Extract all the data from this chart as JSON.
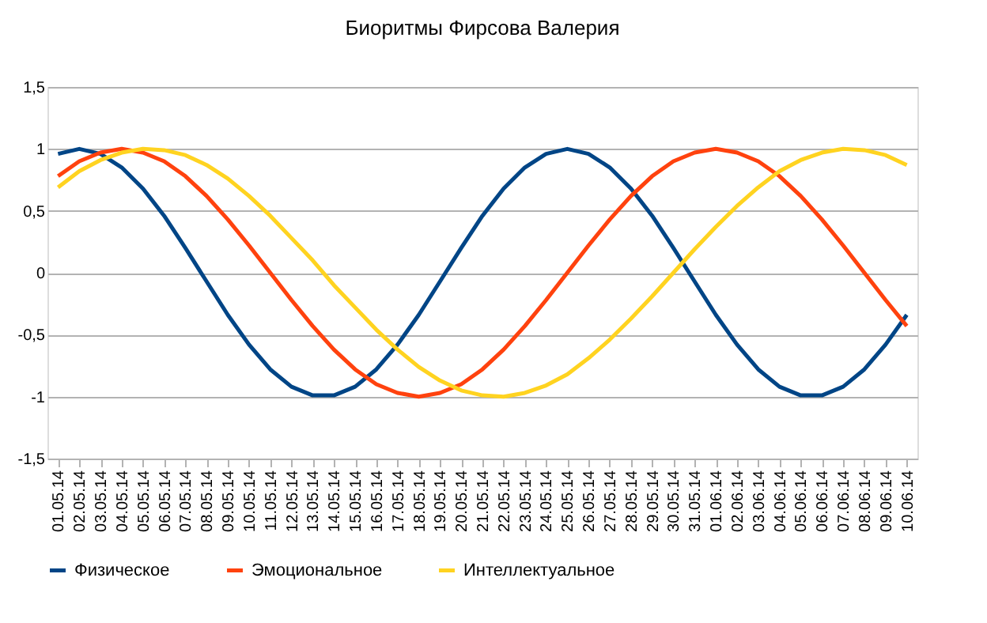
{
  "chart_data": {
    "type": "line",
    "title": "Биоритмы Фирсова Валерия",
    "categories": [
      "01.05.14",
      "02.05.14",
      "03.05.14",
      "04.05.14",
      "05.05.14",
      "06.05.14",
      "07.05.14",
      "08.05.14",
      "09.05.14",
      "10.05.14",
      "11.05.14",
      "12.05.14",
      "13.05.14",
      "14.05.14",
      "15.05.14",
      "16.05.14",
      "17.05.14",
      "18.05.14",
      "19.05.14",
      "20.05.14",
      "21.05.14",
      "22.05.14",
      "23.05.14",
      "24.05.14",
      "25.05.14",
      "26.05.14",
      "27.05.14",
      "28.05.14",
      "29.05.14",
      "30.05.14",
      "31.05.14",
      "01.06.14",
      "02.06.14",
      "03.06.14",
      "04.06.14",
      "05.06.14",
      "06.06.14",
      "07.06.14",
      "08.06.14",
      "09.06.14",
      "10.06.14"
    ],
    "series": [
      {
        "name": "Физическое",
        "color": "#004586",
        "values": [
          0.96,
          1,
          0.96,
          0.85,
          0.68,
          0.46,
          0.2,
          -0.07,
          -0.34,
          -0.58,
          -0.78,
          -0.92,
          -0.99,
          -0.99,
          -0.92,
          -0.78,
          -0.58,
          -0.34,
          -0.07,
          0.2,
          0.46,
          0.68,
          0.85,
          0.96,
          1,
          0.96,
          0.85,
          0.68,
          0.46,
          0.2,
          -0.07,
          -0.34,
          -0.58,
          -0.78,
          -0.92,
          -0.99,
          -0.99,
          -0.92,
          -0.78,
          -0.58,
          -0.34
        ]
      },
      {
        "name": "Эмоциональное",
        "color": "#ff420e",
        "values": [
          0.78,
          0.9,
          0.97,
          1,
          0.97,
          0.9,
          0.78,
          0.62,
          0.43,
          0.22,
          0,
          -0.22,
          -0.43,
          -0.62,
          -0.78,
          -0.9,
          -0.97,
          -1,
          -0.97,
          -0.9,
          -0.78,
          -0.62,
          -0.43,
          -0.22,
          0,
          0.22,
          0.43,
          0.62,
          0.78,
          0.9,
          0.97,
          1,
          0.97,
          0.9,
          0.78,
          0.62,
          0.43,
          0.22,
          0,
          -0.22,
          -0.43
        ]
      },
      {
        "name": "Интеллектуальное",
        "color": "#ffd320",
        "values": [
          0.69,
          0.82,
          0.91,
          0.97,
          1,
          0.99,
          0.95,
          0.87,
          0.76,
          0.62,
          0.46,
          0.28,
          0.1,
          -0.1,
          -0.28,
          -0.46,
          -0.62,
          -0.76,
          -0.87,
          -0.95,
          -0.99,
          -1,
          -0.97,
          -0.91,
          -0.82,
          -0.69,
          -0.54,
          -0.37,
          -0.19,
          0,
          0.19,
          0.37,
          0.54,
          0.69,
          0.82,
          0.91,
          0.97,
          1,
          0.99,
          0.95,
          0.87
        ]
      }
    ],
    "ylim": [
      -1.5,
      1.5
    ],
    "yticks": [
      {
        "value": -1.5,
        "label": "-1,5"
      },
      -1,
      {
        "value": -0.5,
        "label": "-0,5"
      },
      0,
      {
        "value": 0.5,
        "label": "0,5"
      },
      1,
      {
        "value": 1.5,
        "label": "1,5"
      }
    ],
    "grid": "y",
    "legend": "bottom",
    "marker": "none",
    "line_style": "solid"
  }
}
